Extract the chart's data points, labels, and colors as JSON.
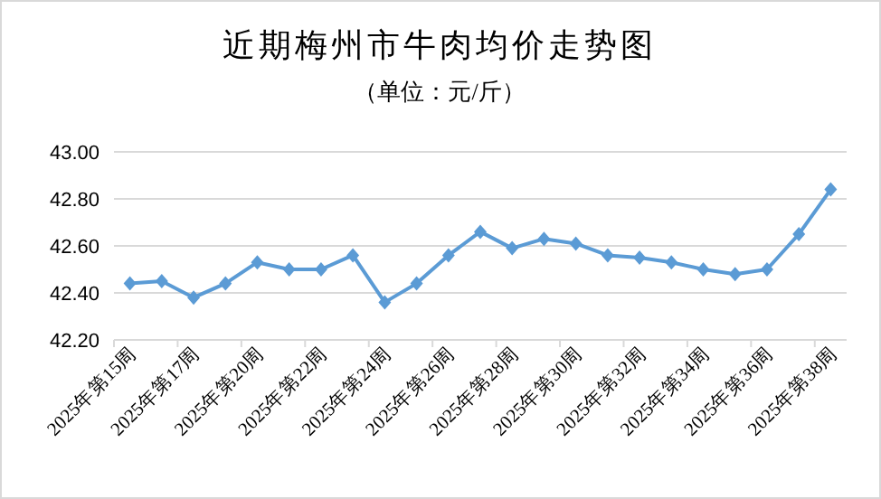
{
  "chart_data": {
    "type": "line",
    "title": "近期梅州市牛肉均价走势图",
    "subtitle": "（单位：元/斤）",
    "categories": [
      "2025年第15周",
      null,
      "2025年第17周",
      null,
      "2025年第20周",
      null,
      "2025年第22周",
      null,
      "2025年第24周",
      null,
      "2025年第26周",
      null,
      "2025年第28周",
      null,
      "2025年第30周",
      null,
      "2025年第32周",
      null,
      "2025年第34周",
      null,
      "2025年第36周",
      null,
      "2025年第38周"
    ],
    "series": [
      {
        "color": "#5b9bd5",
        "values": [
          42.44,
          42.45,
          42.38,
          42.44,
          42.53,
          42.5,
          42.5,
          42.56,
          42.36,
          42.44,
          42.56,
          42.66,
          42.59,
          42.63,
          42.61,
          42.56,
          42.55,
          42.53,
          42.5,
          42.48,
          42.5,
          42.65,
          42.84
        ]
      }
    ],
    "ylim": [
      42.2,
      43.0
    ],
    "yticks": [
      {
        "value": 42.2,
        "label": "42.20"
      },
      {
        "value": 42.4,
        "label": "42.40"
      },
      {
        "value": 42.6,
        "label": "42.60"
      },
      {
        "value": 42.8,
        "label": "42.80"
      },
      {
        "value": 43.0,
        "label": "43.00"
      }
    ],
    "grid": "y",
    "marker": "diamond",
    "line_style": "solid"
  }
}
